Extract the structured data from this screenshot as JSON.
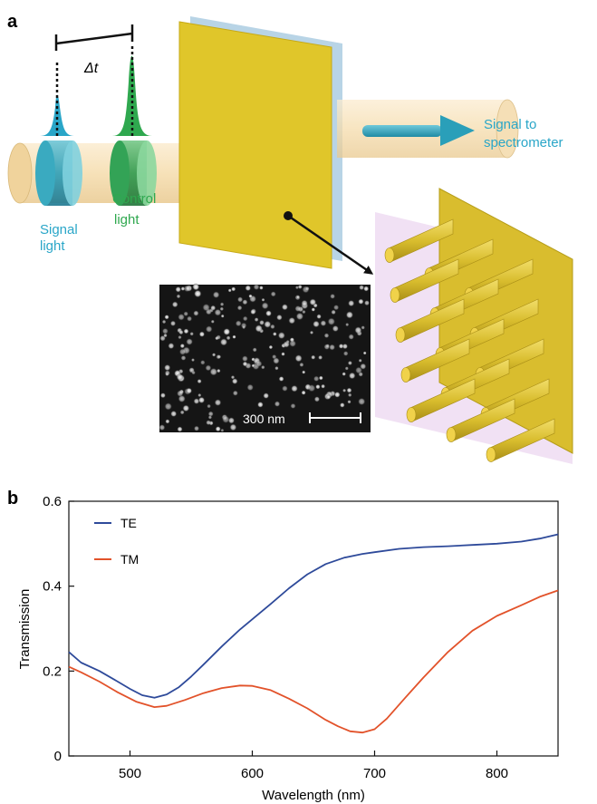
{
  "panel_a": {
    "label": "a",
    "delay_label": "Δt",
    "signal_light": [
      "Signal",
      "light"
    ],
    "control_light": [
      "Control",
      "light"
    ],
    "output_label": [
      "Signal to",
      "spectrometer"
    ],
    "scale_bar": "300 nm",
    "colors": {
      "signal": "#2aa6c8",
      "control": "#2fa84f",
      "beam": "#f4d9a8",
      "film": "#e0c62a",
      "substrate": "#b8d4e6"
    }
  },
  "panel_b": {
    "label": "b"
  },
  "chart_data": {
    "type": "line",
    "xlabel": "Wavelength (nm)",
    "ylabel": "Transmission",
    "xlim": [
      450,
      850
    ],
    "ylim": [
      0,
      0.6
    ],
    "xticks": [
      500,
      600,
      700,
      800
    ],
    "yticks": [
      0,
      0.2,
      0.4,
      0.6
    ],
    "legend_position": "top-left",
    "series": [
      {
        "name": "TE",
        "color": "#2e4a9a",
        "x": [
          450,
          460,
          475,
          490,
          500,
          510,
          520,
          530,
          540,
          550,
          560,
          575,
          590,
          600,
          615,
          630,
          645,
          660,
          675,
          690,
          700,
          720,
          740,
          760,
          780,
          800,
          820,
          835,
          850
        ],
        "y": [
          0.245,
          0.22,
          0.2,
          0.175,
          0.158,
          0.143,
          0.137,
          0.145,
          0.162,
          0.187,
          0.215,
          0.258,
          0.298,
          0.322,
          0.358,
          0.395,
          0.428,
          0.452,
          0.467,
          0.476,
          0.48,
          0.488,
          0.492,
          0.494,
          0.497,
          0.5,
          0.505,
          0.512,
          0.522
        ]
      },
      {
        "name": "TM",
        "color": "#e2522a",
        "x": [
          450,
          460,
          475,
          490,
          505,
          520,
          530,
          545,
          560,
          575,
          590,
          600,
          615,
          630,
          645,
          660,
          670,
          680,
          690,
          700,
          710,
          725,
          740,
          760,
          780,
          800,
          820,
          835,
          850
        ],
        "y": [
          0.21,
          0.197,
          0.175,
          0.15,
          0.128,
          0.115,
          0.118,
          0.132,
          0.148,
          0.16,
          0.166,
          0.165,
          0.155,
          0.135,
          0.112,
          0.085,
          0.07,
          0.058,
          0.055,
          0.063,
          0.088,
          0.137,
          0.185,
          0.245,
          0.295,
          0.33,
          0.355,
          0.375,
          0.39
        ]
      }
    ]
  }
}
